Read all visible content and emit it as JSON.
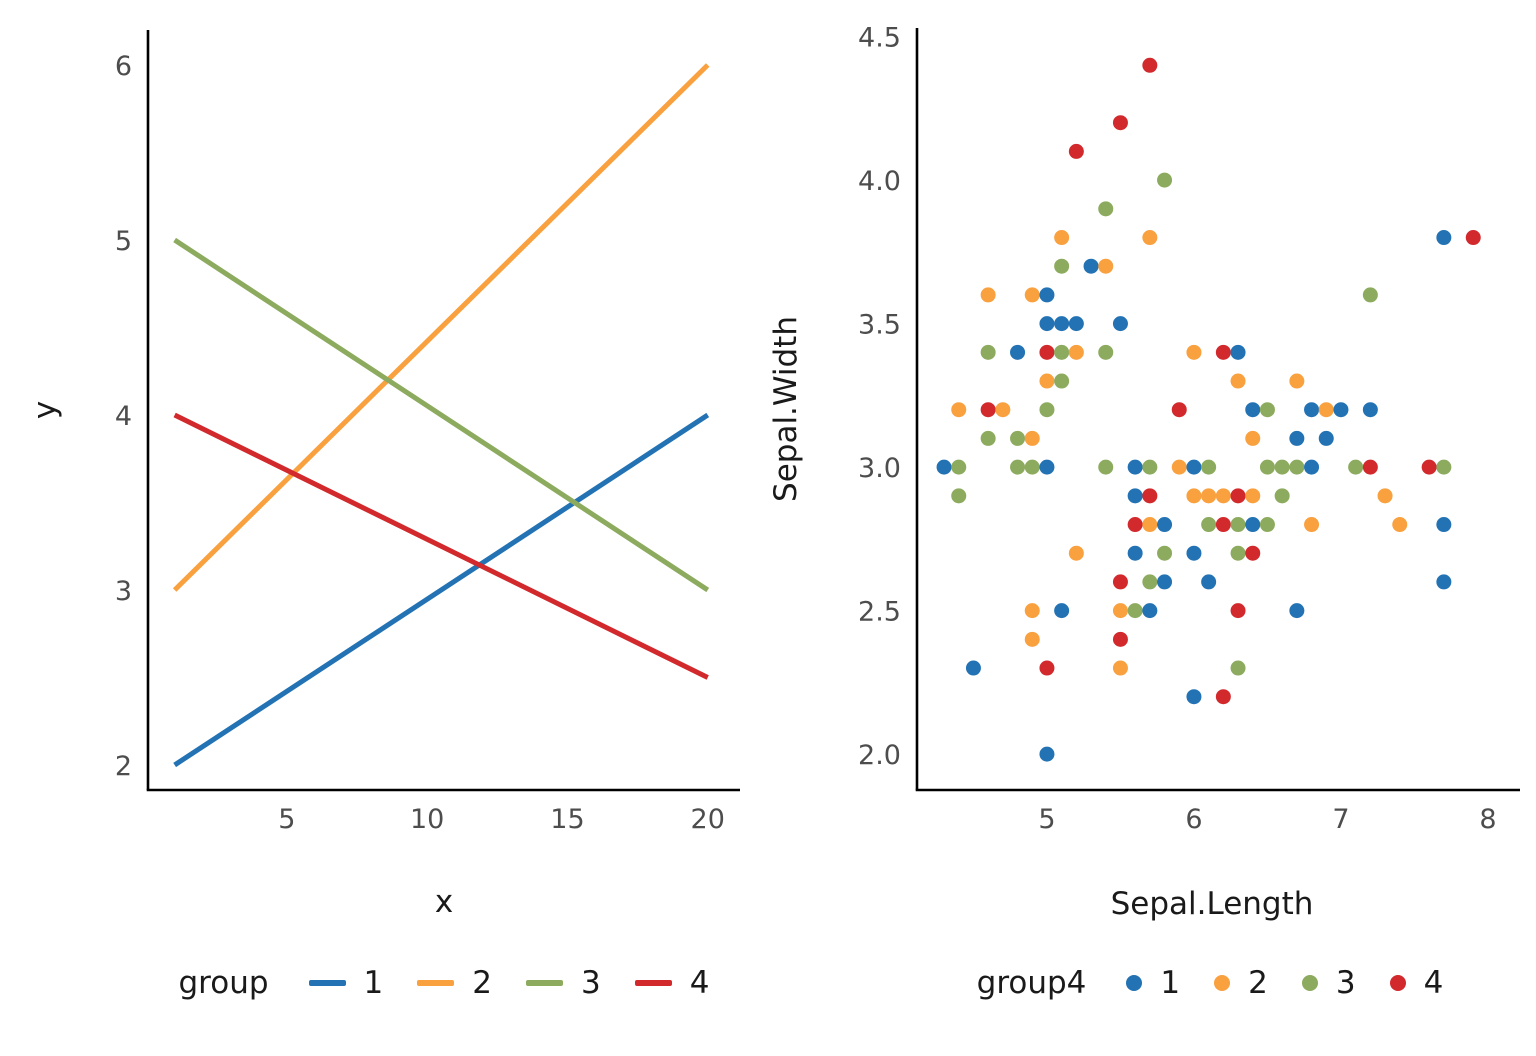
{
  "palette": {
    "1": "#2272b4",
    "2": "#f9a03f",
    "3": "#8cab5e",
    "4": "#d2292d"
  },
  "axis_color": "#000000",
  "tick_label_color": "#4d4d4d",
  "chart_data": [
    {
      "type": "line",
      "title": "",
      "xlabel": "x",
      "ylabel": "y",
      "legend_title": "group",
      "legend_entries": [
        "1",
        "2",
        "3",
        "4"
      ],
      "x_ticks": [
        5,
        10,
        15,
        20
      ],
      "y_ticks": [
        2,
        3,
        4,
        5,
        6
      ],
      "xlim": [
        0.05,
        21.15
      ],
      "ylim": [
        1.857,
        6.2
      ],
      "grid": "off",
      "legend_position": "bottom",
      "series": [
        {
          "name": "1",
          "x": [
            1,
            20
          ],
          "y": [
            2,
            4
          ]
        },
        {
          "name": "2",
          "x": [
            1,
            20
          ],
          "y": [
            3,
            6
          ]
        },
        {
          "name": "3",
          "x": [
            1,
            20
          ],
          "y": [
            5,
            3
          ]
        },
        {
          "name": "4",
          "x": [
            1,
            20
          ],
          "y": [
            4,
            2.5
          ]
        }
      ]
    },
    {
      "type": "scatter",
      "title": "",
      "xlabel": "Sepal.Length",
      "ylabel": "Sepal.Width",
      "legend_title": "group4",
      "legend_entries": [
        "1",
        "2",
        "3",
        "4"
      ],
      "x_ticks": [
        5,
        6,
        7,
        8
      ],
      "y_tick_labels": [
        "2.0",
        "2.5",
        "3.0",
        "3.5",
        "4.0",
        "4.5"
      ],
      "xlim": [
        4.116,
        8.218
      ],
      "ylim": [
        1.875,
        4.53
      ],
      "grid": "off",
      "legend_position": "bottom",
      "points": [
        [
          4.3,
          3.0,
          "1"
        ],
        [
          4.4,
          2.9,
          "3"
        ],
        [
          4.4,
          3.0,
          "3"
        ],
        [
          4.4,
          3.2,
          "2"
        ],
        [
          4.5,
          2.3,
          "1"
        ],
        [
          4.6,
          3.1,
          "3"
        ],
        [
          4.6,
          3.2,
          "4"
        ],
        [
          4.6,
          3.4,
          "3"
        ],
        [
          4.6,
          3.6,
          "2"
        ],
        [
          4.7,
          3.2,
          "2"
        ],
        [
          4.8,
          3.0,
          "3"
        ],
        [
          4.8,
          3.1,
          "3"
        ],
        [
          4.8,
          3.4,
          "1"
        ],
        [
          4.9,
          2.4,
          "2"
        ],
        [
          4.9,
          2.5,
          "2"
        ],
        [
          4.9,
          3.0,
          "3"
        ],
        [
          4.9,
          3.1,
          "2"
        ],
        [
          4.9,
          3.6,
          "2"
        ],
        [
          5.0,
          2.0,
          "1"
        ],
        [
          5.0,
          2.3,
          "4"
        ],
        [
          5.0,
          3.0,
          "1"
        ],
        [
          5.0,
          3.2,
          "3"
        ],
        [
          5.0,
          3.3,
          "2"
        ],
        [
          5.0,
          3.4,
          "4"
        ],
        [
          5.0,
          3.5,
          "1"
        ],
        [
          5.0,
          3.6,
          "1"
        ],
        [
          5.1,
          2.5,
          "1"
        ],
        [
          5.1,
          3.3,
          "3"
        ],
        [
          5.1,
          3.4,
          "3"
        ],
        [
          5.1,
          3.5,
          "1"
        ],
        [
          5.1,
          3.7,
          "3"
        ],
        [
          5.1,
          3.8,
          "2"
        ],
        [
          5.2,
          2.7,
          "2"
        ],
        [
          5.2,
          3.4,
          "2"
        ],
        [
          5.2,
          3.5,
          "1"
        ],
        [
          5.2,
          4.1,
          "4"
        ],
        [
          5.3,
          3.7,
          "1"
        ],
        [
          5.4,
          3.0,
          "3"
        ],
        [
          5.4,
          3.4,
          "3"
        ],
        [
          5.4,
          3.7,
          "2"
        ],
        [
          5.4,
          3.9,
          "3"
        ],
        [
          5.5,
          2.3,
          "2"
        ],
        [
          5.5,
          2.4,
          "4"
        ],
        [
          5.5,
          2.5,
          "2"
        ],
        [
          5.5,
          2.6,
          "4"
        ],
        [
          5.5,
          3.5,
          "1"
        ],
        [
          5.5,
          4.2,
          "4"
        ],
        [
          5.6,
          2.5,
          "3"
        ],
        [
          5.6,
          2.7,
          "1"
        ],
        [
          5.6,
          2.8,
          "4"
        ],
        [
          5.6,
          2.9,
          "1"
        ],
        [
          5.6,
          3.0,
          "1"
        ],
        [
          5.7,
          2.5,
          "1"
        ],
        [
          5.7,
          2.6,
          "3"
        ],
        [
          5.7,
          2.8,
          "2"
        ],
        [
          5.7,
          2.9,
          "4"
        ],
        [
          5.7,
          3.0,
          "3"
        ],
        [
          5.7,
          3.8,
          "2"
        ],
        [
          5.7,
          4.4,
          "4"
        ],
        [
          5.8,
          2.6,
          "1"
        ],
        [
          5.8,
          2.7,
          "3"
        ],
        [
          5.8,
          2.8,
          "1"
        ],
        [
          5.8,
          4.0,
          "3"
        ],
        [
          5.9,
          3.0,
          "2"
        ],
        [
          5.9,
          3.2,
          "4"
        ],
        [
          6.0,
          2.2,
          "1"
        ],
        [
          6.0,
          2.7,
          "1"
        ],
        [
          6.0,
          2.9,
          "2"
        ],
        [
          6.0,
          3.0,
          "1"
        ],
        [
          6.0,
          3.4,
          "2"
        ],
        [
          6.1,
          2.6,
          "1"
        ],
        [
          6.1,
          2.8,
          "3"
        ],
        [
          6.1,
          2.9,
          "2"
        ],
        [
          6.1,
          3.0,
          "3"
        ],
        [
          6.2,
          2.2,
          "4"
        ],
        [
          6.2,
          2.8,
          "4"
        ],
        [
          6.2,
          2.9,
          "2"
        ],
        [
          6.2,
          3.4,
          "4"
        ],
        [
          6.3,
          2.3,
          "3"
        ],
        [
          6.3,
          2.5,
          "4"
        ],
        [
          6.3,
          2.7,
          "3"
        ],
        [
          6.3,
          2.8,
          "3"
        ],
        [
          6.3,
          2.9,
          "4"
        ],
        [
          6.3,
          3.3,
          "2"
        ],
        [
          6.3,
          3.4,
          "1"
        ],
        [
          6.4,
          2.7,
          "4"
        ],
        [
          6.4,
          2.8,
          "1"
        ],
        [
          6.4,
          2.9,
          "2"
        ],
        [
          6.4,
          3.1,
          "2"
        ],
        [
          6.4,
          3.2,
          "1"
        ],
        [
          6.5,
          2.8,
          "3"
        ],
        [
          6.5,
          3.0,
          "3"
        ],
        [
          6.5,
          3.2,
          "3"
        ],
        [
          6.6,
          2.9,
          "3"
        ],
        [
          6.6,
          3.0,
          "3"
        ],
        [
          6.7,
          2.5,
          "1"
        ],
        [
          6.7,
          3.0,
          "3"
        ],
        [
          6.7,
          3.1,
          "1"
        ],
        [
          6.7,
          3.3,
          "2"
        ],
        [
          6.8,
          2.8,
          "2"
        ],
        [
          6.8,
          3.0,
          "1"
        ],
        [
          6.8,
          3.2,
          "1"
        ],
        [
          6.9,
          3.1,
          "1"
        ],
        [
          6.9,
          3.2,
          "2"
        ],
        [
          7.0,
          3.2,
          "1"
        ],
        [
          7.1,
          3.0,
          "3"
        ],
        [
          7.2,
          3.0,
          "4"
        ],
        [
          7.2,
          3.2,
          "1"
        ],
        [
          7.2,
          3.6,
          "3"
        ],
        [
          7.3,
          2.9,
          "2"
        ],
        [
          7.4,
          2.8,
          "2"
        ],
        [
          7.6,
          3.0,
          "4"
        ],
        [
          7.7,
          2.6,
          "1"
        ],
        [
          7.7,
          2.8,
          "1"
        ],
        [
          7.7,
          3.0,
          "3"
        ],
        [
          7.7,
          3.8,
          "1"
        ],
        [
          7.9,
          3.8,
          "4"
        ]
      ]
    }
  ]
}
